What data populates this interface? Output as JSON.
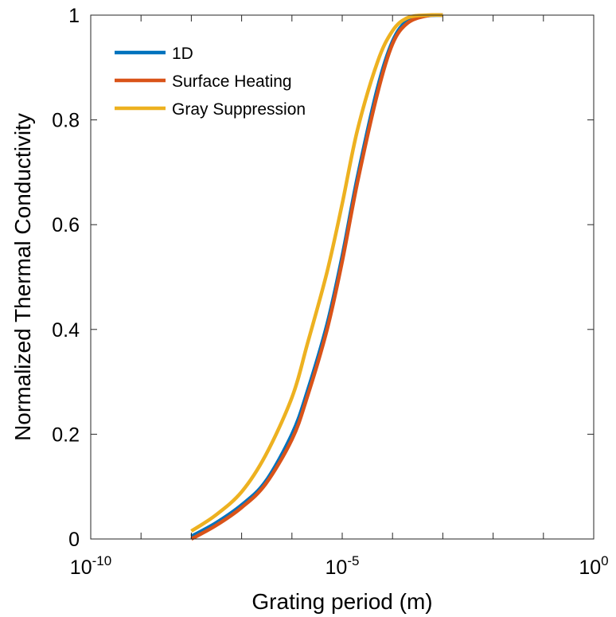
{
  "chart_data": {
    "type": "line",
    "xlabel": "Grating period (m)",
    "ylabel": "Normalized Thermal Conductivity",
    "xscale": "log",
    "xlim": [
      1e-10,
      1
    ],
    "ylim": [
      0,
      1
    ],
    "grid": false,
    "legend_position": "top-left",
    "x_ticks": [
      {
        "base": "10",
        "exp": "-10",
        "value": 1e-10
      },
      {
        "base": "10",
        "exp": "-5",
        "value": 1e-05
      },
      {
        "base": "10",
        "exp": "0",
        "value": 1
      }
    ],
    "y_ticks": [
      "0",
      "0.2",
      "0.4",
      "0.6",
      "0.8",
      "1"
    ],
    "y_tick_values": [
      0,
      0.2,
      0.4,
      0.6,
      0.8,
      1
    ],
    "series": [
      {
        "name": "1D",
        "color": "#0072BD",
        "x": [
          1e-08,
          3e-08,
          1e-07,
          3e-07,
          1e-06,
          2e-06,
          5e-06,
          1e-05,
          2e-05,
          5e-05,
          0.0001,
          0.0002,
          0.0005,
          0.001
        ],
        "y": [
          0.005,
          0.03,
          0.065,
          0.11,
          0.2,
          0.28,
          0.41,
          0.54,
          0.69,
          0.86,
          0.95,
          0.99,
          0.999,
          1.0
        ]
      },
      {
        "name": "Surface Heating",
        "color": "#D95319",
        "x": [
          1e-08,
          3e-08,
          1e-07,
          3e-07,
          1e-06,
          2e-06,
          5e-06,
          1e-05,
          2e-05,
          5e-05,
          0.0001,
          0.0002,
          0.0005,
          0.001
        ],
        "y": [
          0.0,
          0.025,
          0.06,
          0.105,
          0.19,
          0.27,
          0.4,
          0.53,
          0.68,
          0.85,
          0.945,
          0.985,
          0.999,
          1.0
        ]
      },
      {
        "name": "Gray Suppression",
        "color": "#EDB120",
        "x": [
          1e-08,
          3e-08,
          1e-07,
          3e-07,
          1e-06,
          2e-06,
          5e-06,
          1e-05,
          2e-05,
          5e-05,
          0.0001,
          0.0002,
          0.0005,
          0.001
        ],
        "y": [
          0.015,
          0.045,
          0.09,
          0.16,
          0.27,
          0.37,
          0.51,
          0.64,
          0.78,
          0.91,
          0.97,
          0.995,
          1.0,
          1.0
        ]
      }
    ]
  }
}
